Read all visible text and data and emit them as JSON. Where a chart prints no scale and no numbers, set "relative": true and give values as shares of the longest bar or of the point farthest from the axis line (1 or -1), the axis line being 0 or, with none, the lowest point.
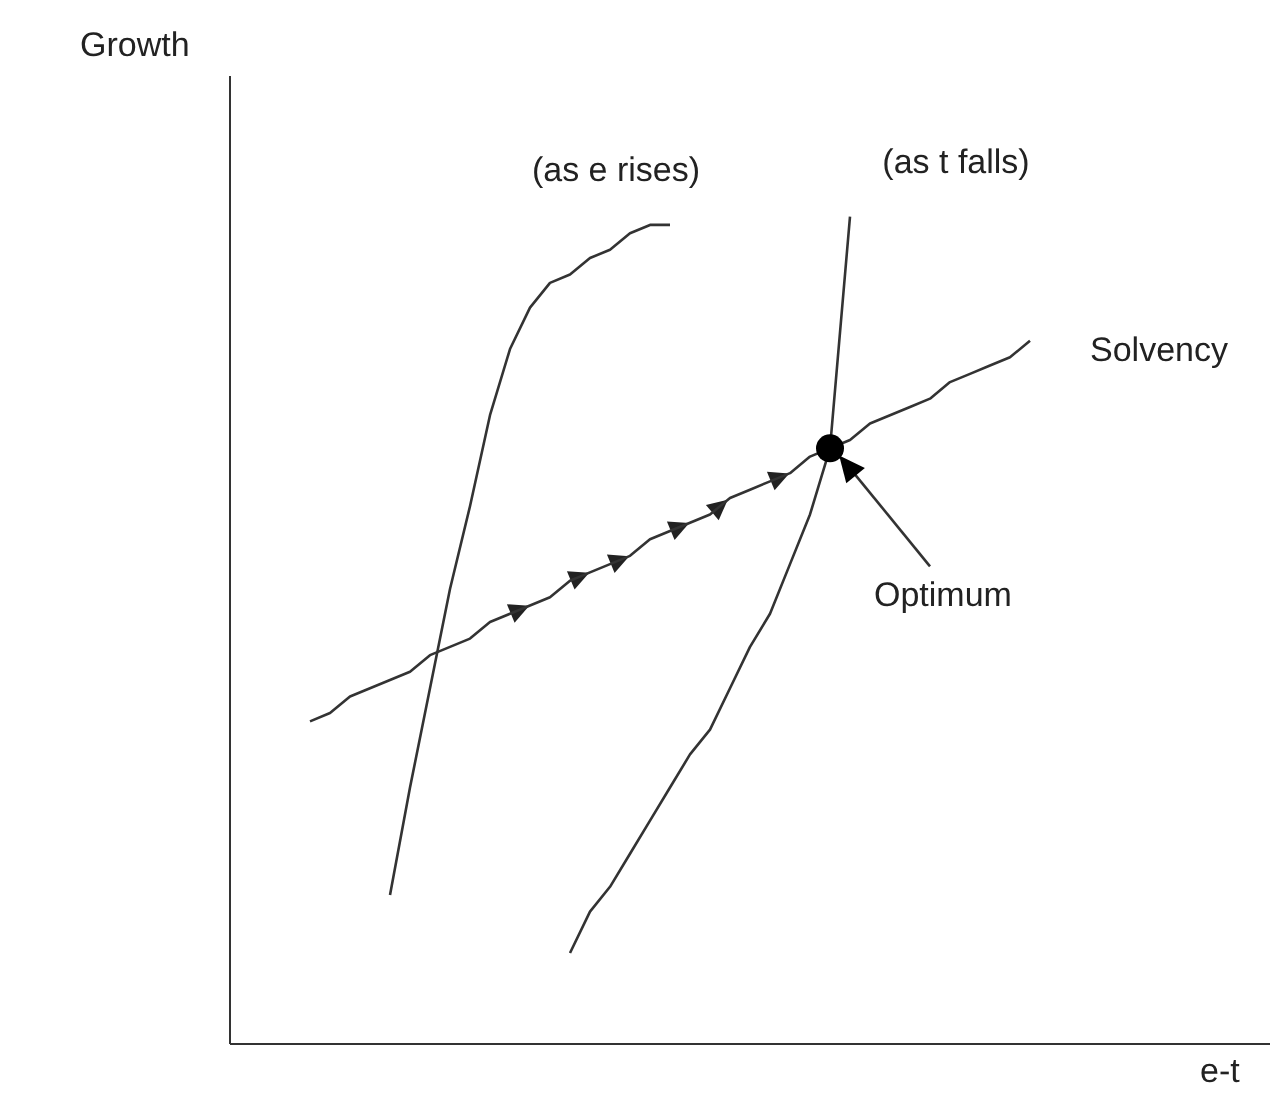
{
  "chart_data": {
    "type": "line",
    "relative": true,
    "xlabel": "e-t",
    "ylabel": "Growth",
    "grid": false,
    "legend": false,
    "marker": "none",
    "line_style": "solid",
    "categories": [
      null,
      null,
      null,
      null,
      null,
      null,
      null,
      null,
      null,
      null,
      null,
      null,
      null,
      null,
      null,
      null,
      null,
      null,
      null,
      null,
      null,
      null,
      null,
      null,
      null,
      null,
      null,
      null,
      null,
      null,
      null,
      null,
      null,
      null,
      null,
      null,
      null,
      null,
      null,
      null,
      null,
      null,
      null,
      null,
      null,
      null,
      null,
      null,
      null,
      null,
      null
    ],
    "series": [
      {
        "name": "(as e rises)",
        "color": "#333333",
        "values": [
          null,
          null,
          null,
          null,
          null,
          null,
          null,
          null,
          0.18,
          0.31,
          0.43,
          0.55,
          0.65,
          0.76,
          0.84,
          0.89,
          0.92,
          0.93,
          0.95,
          0.96,
          0.98,
          0.99,
          0.99,
          null,
          null,
          null,
          null,
          null,
          null,
          null,
          null,
          null,
          null,
          null,
          null,
          null,
          null,
          null,
          null,
          null,
          null,
          null,
          null,
          null,
          null,
          null,
          null,
          null,
          null,
          null,
          null
        ]
      },
      {
        "name": "(as t falls)",
        "color": "#333333",
        "values": [
          null,
          null,
          null,
          null,
          null,
          null,
          null,
          null,
          null,
          null,
          null,
          null,
          null,
          null,
          null,
          null,
          null,
          0.11,
          0.16,
          0.19,
          0.23,
          0.27,
          0.31,
          0.35,
          0.38,
          0.43,
          0.48,
          0.52,
          0.58,
          0.64,
          0.72,
          1,
          null,
          null,
          null,
          null,
          null,
          null,
          null,
          null,
          null,
          null,
          null,
          null,
          null,
          null,
          null,
          null,
          null,
          null,
          null
        ]
      },
      {
        "name": "Solvency",
        "color": "#333333",
        "values": [
          null,
          null,
          null,
          null,
          0.39,
          0.4,
          0.42,
          0.43,
          0.44,
          0.45,
          0.47,
          0.48,
          0.49,
          0.51,
          0.52,
          0.53,
          0.54,
          0.56,
          0.57,
          0.58,
          0.59,
          0.61,
          0.62,
          0.63,
          0.64,
          0.66,
          0.67,
          0.68,
          0.69,
          0.71,
          0.72,
          0.73,
          0.75,
          0.76,
          0.77,
          0.78,
          0.8,
          0.81,
          0.82,
          0.83,
          0.85,
          null,
          null,
          null,
          null,
          null,
          null,
          null,
          null,
          null,
          null
        ]
      }
    ],
    "annotations": [
      "Optimum"
    ]
  }
}
